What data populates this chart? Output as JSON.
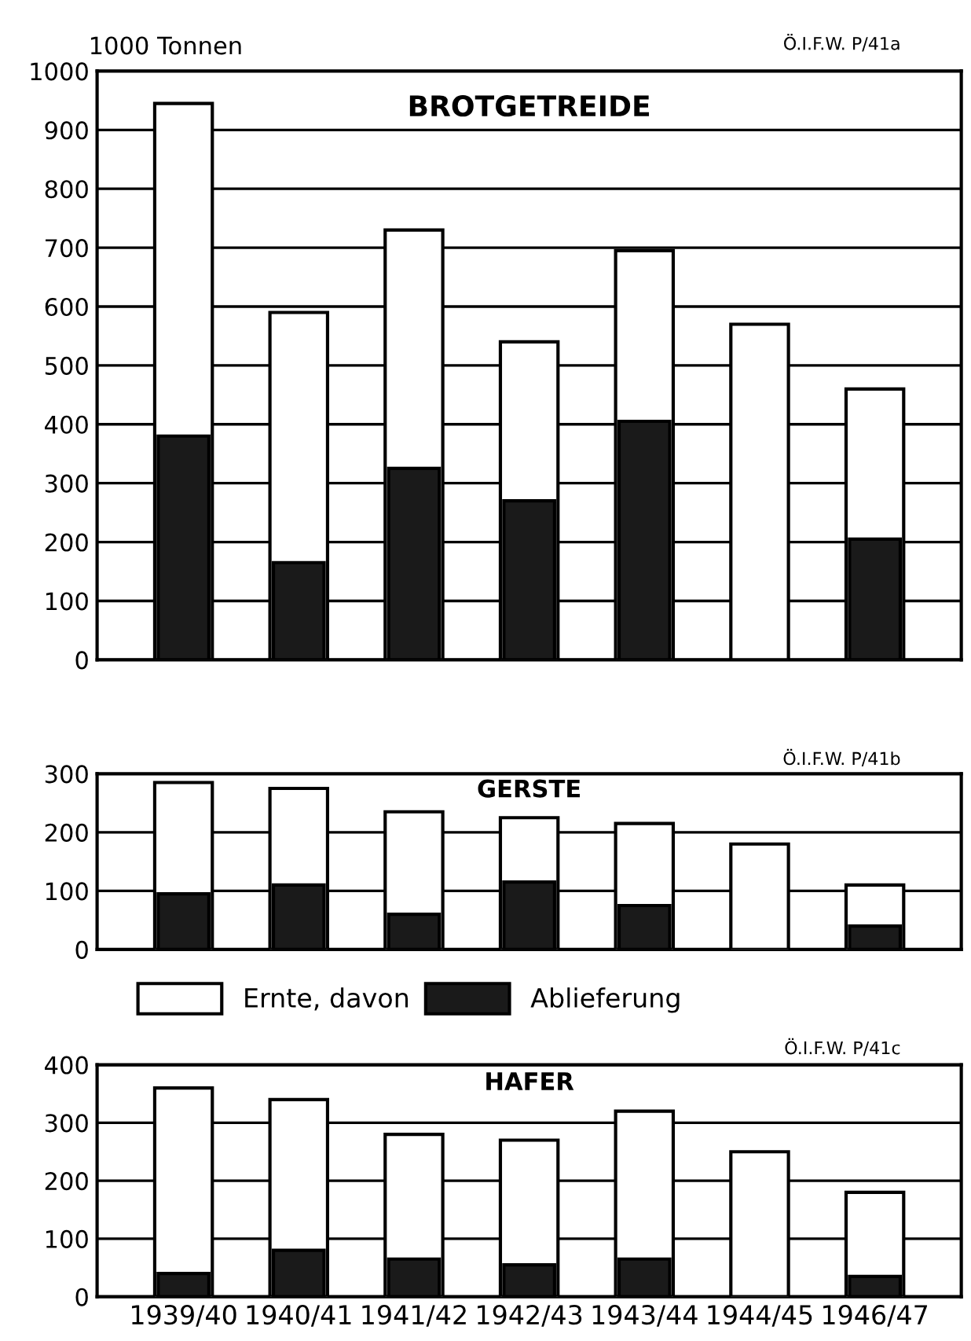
{
  "chart_data": [
    {
      "type": "bar",
      "title": "BROTGETREIDE",
      "ylabel": "1000 Tonnen",
      "annotations": [
        "Ö.I.F.W. P/41a"
      ],
      "categories": [
        "1939/40",
        "1940/41",
        "1941/42",
        "1942/43",
        "1943/44",
        "1944/45",
        "1946/47"
      ],
      "series": [
        {
          "color": "#ffffff",
          "values": [
            945,
            590,
            730,
            540,
            695,
            570,
            460
          ]
        },
        {
          "color": "#1a1a1a",
          "values": [
            380,
            165,
            325,
            270,
            405,
            null,
            205
          ]
        }
      ],
      "ylim": [
        0,
        1000
      ],
      "yticks": [
        0,
        100,
        200,
        300,
        400,
        500,
        600,
        700,
        800,
        900,
        1000
      ],
      "grid": "y",
      "tick_labels": "y"
    },
    {
      "type": "bar",
      "title": "GERSTE",
      "annotations": [
        "Ö.I.F.W. P/41b"
      ],
      "categories": [
        "1939/40",
        "1940/41",
        "1941/42",
        "1942/43",
        "1943/44",
        "1944/45",
        "1946/47"
      ],
      "series": [
        {
          "name": "Ernte, davon",
          "color": "#ffffff",
          "values": [
            285,
            275,
            235,
            225,
            215,
            180,
            110
          ]
        },
        {
          "name": "Ablieferung",
          "color": "#1a1a1a",
          "values": [
            95,
            110,
            60,
            115,
            75,
            null,
            40
          ]
        }
      ],
      "ylim": [
        0,
        300
      ],
      "yticks": [
        0,
        100,
        200,
        300
      ],
      "grid": "y",
      "tick_labels": "y",
      "legend": "bottom"
    },
    {
      "type": "bar",
      "title": "HAFER",
      "annotations": [
        "Ö.I.F.W. P/41c"
      ],
      "categories": [
        "1939/40",
        "1940/41",
        "1941/42",
        "1942/43",
        "1943/44",
        "1944/45",
        "1946/47"
      ],
      "series": [
        {
          "color": "#ffffff",
          "values": [
            360,
            340,
            280,
            270,
            320,
            250,
            180
          ]
        },
        {
          "color": "#1a1a1a",
          "values": [
            40,
            80,
            65,
            55,
            65,
            null,
            35
          ]
        }
      ],
      "ylim": [
        0,
        400
      ],
      "yticks": [
        0,
        100,
        200,
        300,
        400
      ],
      "grid": "y"
    }
  ]
}
